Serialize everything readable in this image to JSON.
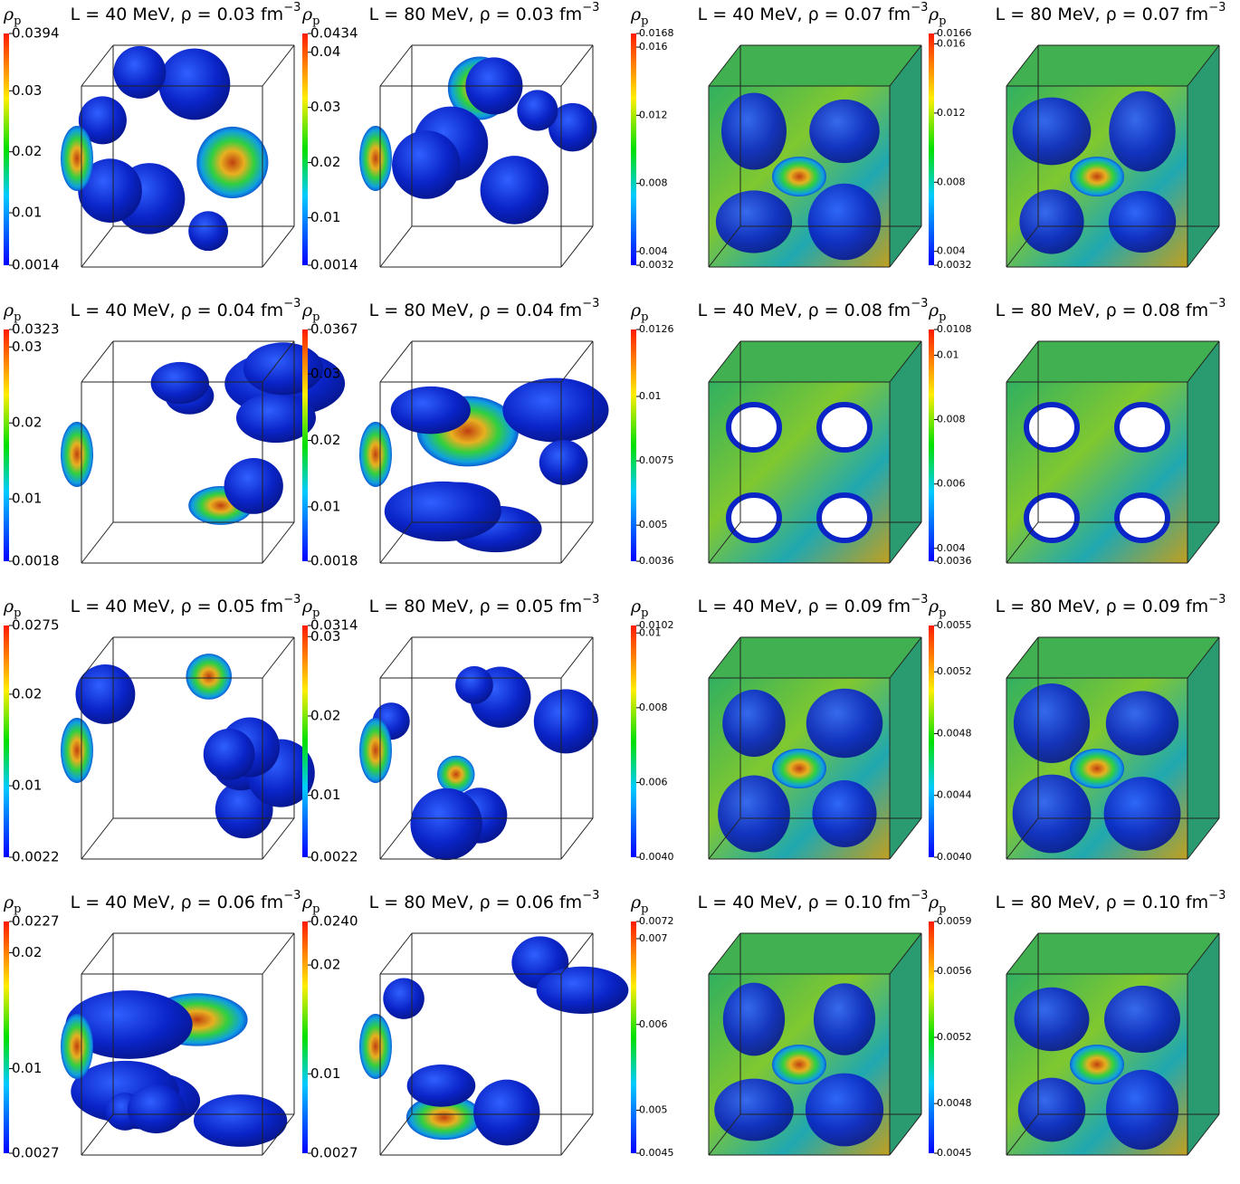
{
  "panels": [
    {
      "title": "L = 40 MeV, ρ = 0.03 fm",
      "title_superscript": "−3",
      "colorbar": {
        "label": "ρ",
        "subscript": "p",
        "vlim": [
          0.0014,
          0.0394
        ],
        "ticks": [
          0.0394,
          0.03,
          0.02,
          0.01,
          0.0014
        ]
      }
    },
    {
      "title": "L = 80 MeV, ρ = 0.03 fm",
      "title_superscript": "−3",
      "colorbar": {
        "label": "ρ",
        "subscript": "p",
        "vlim": [
          0.0014,
          0.0434
        ],
        "ticks": [
          0.0434,
          0.04,
          0.03,
          0.02,
          0.01,
          0.0014
        ]
      }
    },
    {
      "title": "L = 40 MeV, ρ = 0.07 fm",
      "title_superscript": "−3",
      "colorbar": {
        "label": "ρ",
        "subscript": "p",
        "vlim": [
          0.0032,
          0.0168
        ],
        "ticks": [
          0.0168,
          0.016,
          0.012,
          0.008,
          0.004,
          0.0032
        ]
      }
    },
    {
      "title": "L = 80 MeV, ρ = 0.07 fm",
      "title_superscript": "−3",
      "colorbar": {
        "label": "ρ",
        "subscript": "p",
        "vlim": [
          0.0032,
          0.0166
        ],
        "ticks": [
          0.0166,
          0.016,
          0.012,
          0.008,
          0.004,
          0.0032
        ]
      }
    },
    {
      "title": "L = 40 MeV, ρ = 0.04 fm",
      "title_superscript": "−3",
      "colorbar": {
        "label": "ρ",
        "subscript": "p",
        "vlim": [
          0.0018,
          0.0323
        ],
        "ticks": [
          0.0323,
          0.03,
          0.02,
          0.01,
          0.0018
        ]
      }
    },
    {
      "title": "L = 80 MeV, ρ = 0.04 fm",
      "title_superscript": "−3",
      "colorbar": {
        "label": "ρ",
        "subscript": "p",
        "vlim": [
          0.0018,
          0.0367
        ],
        "ticks": [
          0.0367,
          0.03,
          0.02,
          0.01,
          0.0018
        ]
      }
    },
    {
      "title": "L = 40 MeV, ρ = 0.08 fm",
      "title_superscript": "−3",
      "colorbar": {
        "label": "ρ",
        "subscript": "p",
        "vlim": [
          0.0036,
          0.0126
        ],
        "ticks": [
          0.0126,
          0.01,
          0.0075,
          0.005,
          0.0036
        ]
      }
    },
    {
      "title": "L = 80 MeV, ρ = 0.08 fm",
      "title_superscript": "−3",
      "colorbar": {
        "label": "ρ",
        "subscript": "p",
        "vlim": [
          0.0036,
          0.0108
        ],
        "ticks": [
          0.0108,
          0.01,
          0.008,
          0.006,
          0.004,
          0.0036
        ]
      }
    },
    {
      "title": "L = 40 MeV, ρ = 0.05 fm",
      "title_superscript": "−3",
      "colorbar": {
        "label": "ρ",
        "subscript": "p",
        "vlim": [
          0.0022,
          0.0275
        ],
        "ticks": [
          0.0275,
          0.02,
          0.01,
          0.0022
        ]
      }
    },
    {
      "title": "L = 80 MeV, ρ = 0.05 fm",
      "title_superscript": "−3",
      "colorbar": {
        "label": "ρ",
        "subscript": "p",
        "vlim": [
          0.0022,
          0.0314
        ],
        "ticks": [
          0.0314,
          0.03,
          0.02,
          0.01,
          0.0022
        ]
      }
    },
    {
      "title": "L = 40 MeV, ρ = 0.09 fm",
      "title_superscript": "−3",
      "colorbar": {
        "label": "ρ",
        "subscript": "p",
        "vlim": [
          0.004,
          0.0102
        ],
        "ticks": [
          0.0102,
          0.01,
          0.008,
          0.006,
          {
            "value": 0.004,
            "label": "0.0040"
          }
        ]
      }
    },
    {
      "title": "L = 80 MeV, ρ = 0.09 fm",
      "title_superscript": "−3",
      "colorbar": {
        "label": "ρ",
        "subscript": "p",
        "vlim": [
          0.004,
          0.0055
        ],
        "ticks": [
          0.0055,
          0.0052,
          0.0048,
          0.0044,
          {
            "value": 0.004,
            "label": "0.0040"
          }
        ]
      }
    },
    {
      "title": "L = 40 MeV, ρ = 0.06 fm",
      "title_superscript": "−3",
      "colorbar": {
        "label": "ρ",
        "subscript": "p",
        "vlim": [
          0.0027,
          0.0227
        ],
        "ticks": [
          0.0227,
          0.02,
          0.01,
          0.0027
        ]
      }
    },
    {
      "title": "L = 80 MeV, ρ = 0.06 fm",
      "title_superscript": "−3",
      "colorbar": {
        "label": "ρ",
        "subscript": "p",
        "vlim": [
          0.0027,
          0.024
        ],
        "ticks": [
          {
            "value": 0.024,
            "label": "0.0240"
          },
          0.02,
          0.01,
          0.0027
        ]
      }
    },
    {
      "title": "L = 40 MeV, ρ = 0.10 fm",
      "title_superscript": "−3",
      "colorbar": {
        "label": "ρ",
        "subscript": "p",
        "vlim": [
          0.0045,
          0.0072
        ],
        "ticks": [
          0.0072,
          0.007,
          0.006,
          0.005,
          0.0045
        ]
      }
    },
    {
      "title": "L = 80 MeV, ρ = 0.10 fm",
      "title_superscript": "−3",
      "colorbar": {
        "label": "ρ",
        "subscript": "p",
        "vlim": [
          0.0045,
          0.0059
        ],
        "ticks": [
          0.0059,
          0.0056,
          0.0052,
          0.0048,
          0.0045
        ]
      }
    }
  ]
}
